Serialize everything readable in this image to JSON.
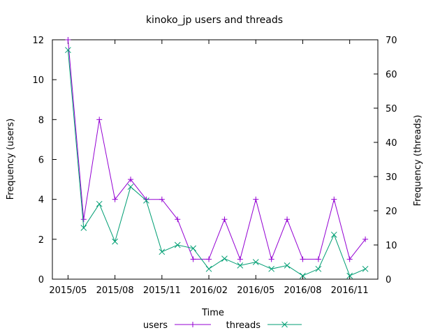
{
  "chart_data": {
    "type": "line",
    "title": "kinoko_jp users and threads",
    "xlabel": "Time",
    "ylabel_left": "Frequency (users)",
    "ylabel_right": "Frequency (threads)",
    "x_ticks": [
      "2015/05",
      "2015/08",
      "2015/11",
      "2016/02",
      "2016/05",
      "2016/08",
      "2016/11"
    ],
    "y_left_ticks": [
      "0",
      "2",
      "4",
      "6",
      "8",
      "10",
      "12"
    ],
    "y_right_ticks": [
      "0",
      "10",
      "20",
      "30",
      "40",
      "50",
      "60",
      "70"
    ],
    "y_left_lim": [
      0,
      12
    ],
    "y_right_lim": [
      0,
      70
    ],
    "x": [
      "2015-05",
      "2015-06",
      "2015-07",
      "2015-08",
      "2015-09",
      "2015-10",
      "2015-11",
      "2015-12",
      "2016-01",
      "2016-02",
      "2016-03",
      "2016-04",
      "2016-05",
      "2016-06",
      "2016-07",
      "2016-08",
      "2016-09",
      "2016-10",
      "2016-11",
      "2016-12"
    ],
    "series": [
      {
        "name": "users",
        "axis": "left",
        "marker": "+",
        "color": "#9400d3",
        "values": [
          12,
          3,
          8,
          4,
          5,
          4,
          4,
          3,
          1,
          1,
          3,
          1,
          4,
          1,
          3,
          1,
          1,
          4,
          1,
          2
        ]
      },
      {
        "name": "threads",
        "axis": "right",
        "marker": "x",
        "color": "#009e73",
        "values": [
          67,
          15,
          22,
          11,
          27,
          23,
          8,
          10,
          9,
          3,
          6,
          4,
          5,
          3,
          4,
          1,
          3,
          13,
          1,
          3
        ]
      }
    ],
    "legend_position": "bottom",
    "grid": false
  }
}
